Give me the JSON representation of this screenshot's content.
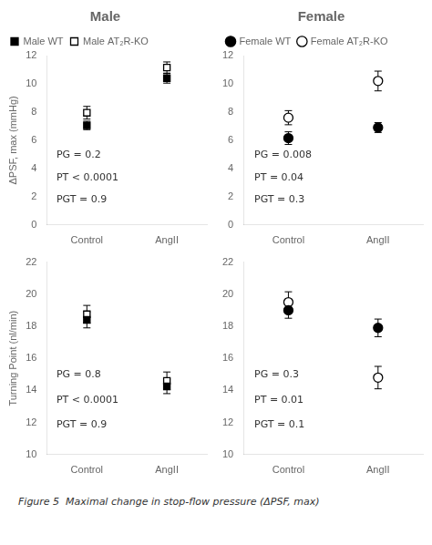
{
  "caption": "Figure 5  Maximal change in stop-flow pressure (ΔPSF, max)",
  "chart_data": [
    {
      "type": "scatter",
      "title": "Male",
      "legend": "top",
      "grid": false,
      "categories": [
        "Control",
        "AngII"
      ],
      "ylabel": "ΔPSF, max (mmHg)",
      "ylim": [
        0,
        12
      ],
      "yticks": [
        0,
        2,
        4,
        6,
        8,
        10,
        12
      ],
      "annotations": [
        "PG = 0.2",
        "PT < 0.0001",
        "PGT = 0.9"
      ],
      "series": [
        {
          "name": "Male WT",
          "color": "black",
          "marker": "square",
          "values": [
            7.05,
            10.4
          ],
          "errors": [
            0.3,
            0.35
          ]
        },
        {
          "name": "Male AT₂R-KO",
          "color": "black",
          "marker": "open-square",
          "values": [
            7.95,
            11.15
          ],
          "errors": [
            0.45,
            0.4
          ]
        }
      ]
    },
    {
      "type": "scatter",
      "title": "Female",
      "legend": "top",
      "grid": false,
      "categories": [
        "Control",
        "AngII"
      ],
      "ylim": [
        0,
        12
      ],
      "yticks": [
        0,
        2,
        4,
        6,
        8,
        10,
        12
      ],
      "annotations": [
        "PG = 0.008",
        "PT = 0.04",
        "PGT = 0.3"
      ],
      "series": [
        {
          "name": "Female WT",
          "color": "black",
          "marker": "circle",
          "values": [
            6.15,
            6.9
          ],
          "errors": [
            0.45,
            0.35
          ]
        },
        {
          "name": "Female AT₂R-KO",
          "color": "black",
          "marker": "open-circle",
          "values": [
            7.6,
            10.2
          ],
          "errors": [
            0.5,
            0.7
          ]
        }
      ]
    },
    {
      "type": "scatter",
      "grid": false,
      "categories": [
        "Control",
        "AngII"
      ],
      "ylabel": "Turning Point (nl/min)",
      "ylim": [
        10,
        22
      ],
      "yticks": [
        10,
        12,
        14,
        16,
        18,
        20,
        22
      ],
      "annotations": [
        "PG = 0.8",
        "PT < 0.0001",
        "PGT = 0.9"
      ],
      "series": [
        {
          "color": "black",
          "marker": "square",
          "values": [
            18.4,
            14.25
          ],
          "errors": [
            0.5,
            0.45
          ]
        },
        {
          "color": "black",
          "marker": "open-square",
          "values": [
            18.75,
            14.6
          ],
          "errors": [
            0.55,
            0.55
          ]
        }
      ]
    },
    {
      "type": "scatter",
      "grid": false,
      "categories": [
        "Control",
        "AngII"
      ],
      "ylim": [
        10,
        22
      ],
      "yticks": [
        10,
        12,
        14,
        16,
        18,
        20,
        22
      ],
      "annotations": [
        "PG = 0.3",
        "PT = 0.01",
        "PGT = 0.1"
      ],
      "series": [
        {
          "color": "black",
          "marker": "circle",
          "values": [
            19.0,
            17.9
          ],
          "errors": [
            0.5,
            0.55
          ]
        },
        {
          "color": "black",
          "marker": "open-circle",
          "values": [
            19.5,
            14.8
          ],
          "errors": [
            0.65,
            0.7
          ]
        }
      ]
    }
  ]
}
